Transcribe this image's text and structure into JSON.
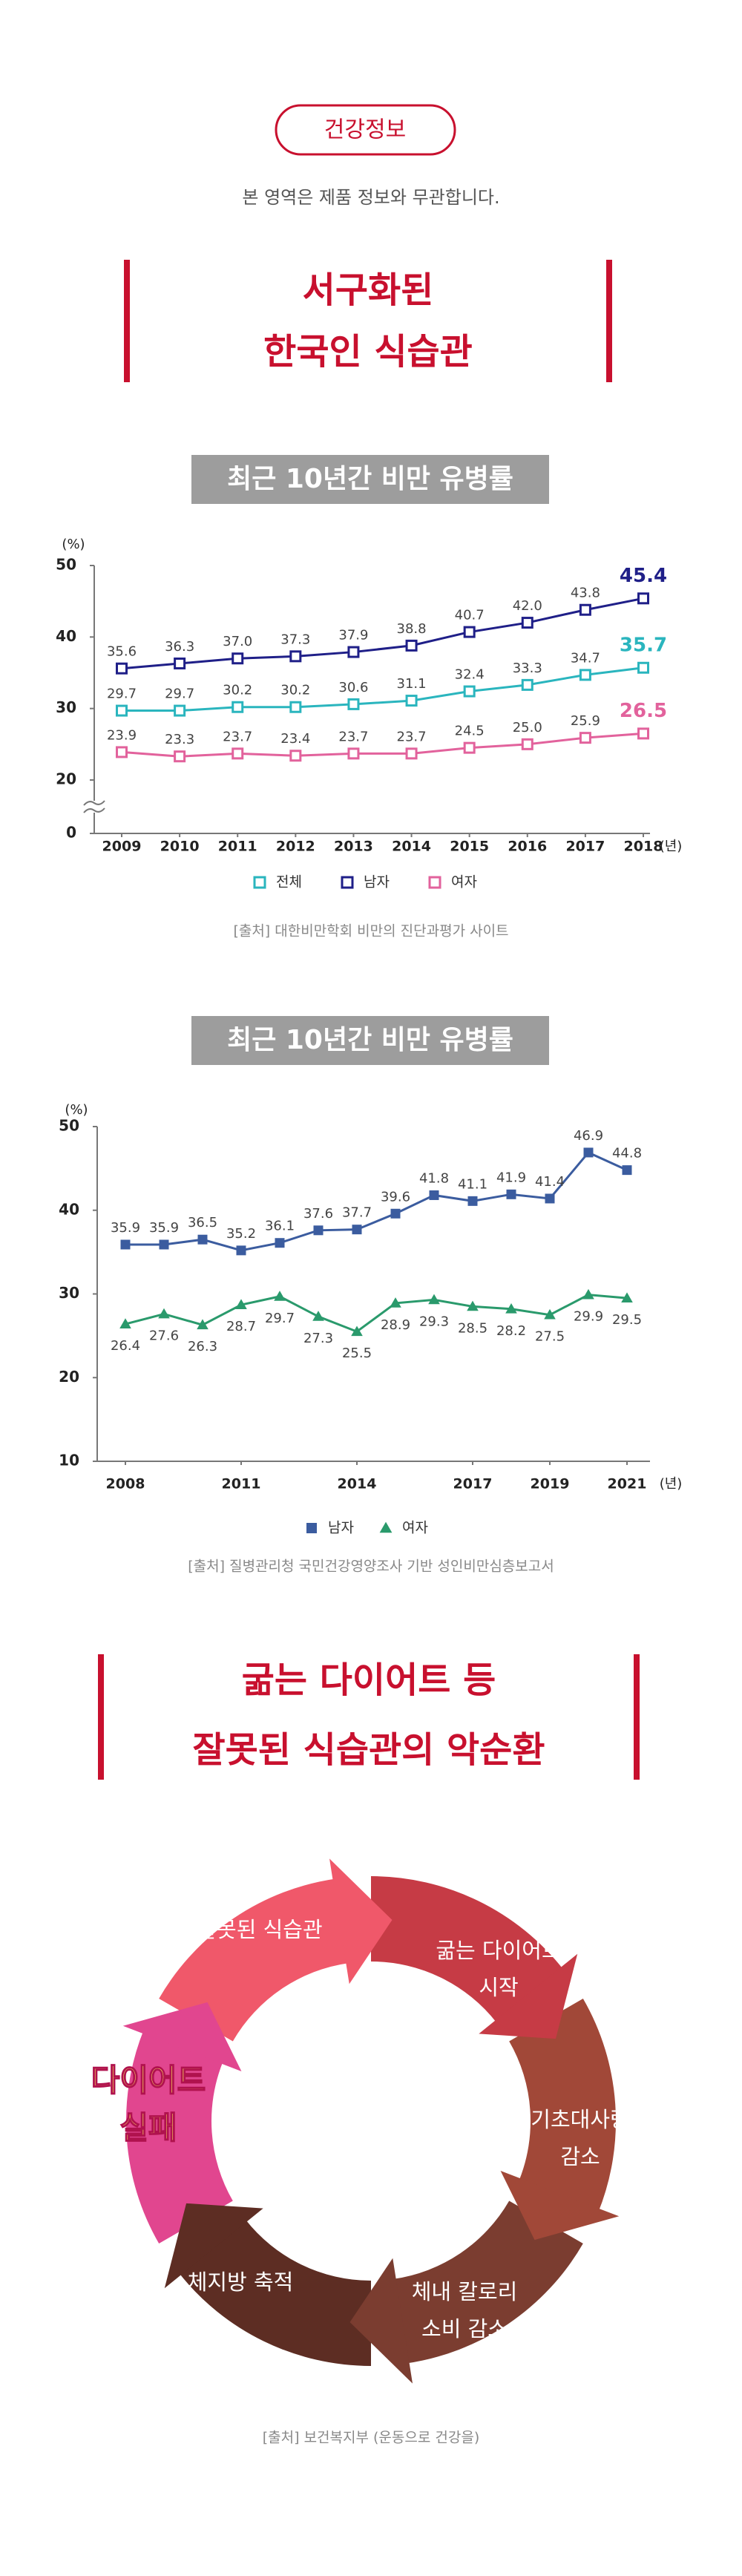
{
  "header": {
    "badge": "건강정보",
    "notice": "본 영역은 제품 정보와 무관합니다.",
    "title": [
      "서구화된",
      "한국인 식습관"
    ]
  },
  "chart_data": [
    {
      "type": "line",
      "title": "최근 10년간 비만 유병률",
      "y_label": "(%)",
      "x_label": "(년)",
      "x": [
        2009,
        2010,
        2011,
        2012,
        2013,
        2014,
        2015,
        2016,
        2017,
        2018
      ],
      "xlim": [
        2009,
        2018
      ],
      "xticks": [
        2009,
        2010,
        2011,
        2012,
        2013,
        2014,
        2015,
        2016,
        2017,
        2018
      ],
      "ylim": [
        0,
        50
      ],
      "yticks": [
        0,
        20,
        30,
        40,
        50
      ],
      "axis_break": true,
      "emphasize_last": true,
      "series": [
        {
          "name": "전체",
          "color": "#2ab5be",
          "marker": "square-open",
          "label_position": "above",
          "values": [
            29.7,
            29.7,
            30.2,
            30.2,
            30.6,
            31.1,
            32.4,
            33.3,
            34.7,
            35.7
          ]
        },
        {
          "name": "남자",
          "color": "#1f1f88",
          "marker": "square-open",
          "label_position": "above",
          "values": [
            35.6,
            36.3,
            37,
            37.3,
            37.9,
            38.8,
            40.7,
            42,
            43.8,
            45.4
          ],
          "value_labels": [
            "35.6",
            "36.3",
            "37.0",
            "37.3",
            "37.9",
            "38.8",
            "40.7",
            "42.0",
            "43.8",
            "45.4"
          ]
        },
        {
          "name": "여자",
          "color": "#e2629c",
          "marker": "square-open",
          "label_position": "above",
          "values": [
            23.9,
            23.3,
            23.7,
            23.4,
            23.7,
            23.7,
            24.5,
            25,
            25.9,
            26.5
          ],
          "value_labels": [
            "23.9",
            "23.3",
            "23.7",
            "23.4",
            "23.7",
            "23.7",
            "24.5",
            "25.0",
            "25.9",
            "26.5"
          ]
        }
      ],
      "source": "[출처] 대한비만학회 비만의 진단과평가 사이트"
    },
    {
      "type": "line",
      "title": "최근 10년간 비만 유병률",
      "y_label": "(%)",
      "x_label": "(년)",
      "x": [
        2008,
        2009,
        2010,
        2011,
        2012,
        2013,
        2014,
        2015,
        2016,
        2017,
        2018,
        2019,
        2020,
        2021
      ],
      "xlim": [
        2008,
        2021
      ],
      "xticks": [
        2008,
        2011,
        2014,
        2017,
        2019,
        2021
      ],
      "ylim": [
        10,
        50
      ],
      "yticks": [
        10,
        20,
        30,
        40,
        50
      ],
      "series": [
        {
          "name": "남자",
          "color": "#3b5c9f",
          "marker": "square",
          "label_position": "above",
          "values": [
            35.9,
            35.9,
            36.5,
            35.2,
            36.1,
            37.6,
            37.7,
            39.6,
            41.8,
            41.1,
            41.9,
            41.4,
            46.9,
            44.8
          ]
        },
        {
          "name": "여자",
          "color": "#2a9a6c",
          "marker": "triangle",
          "label_position": "below",
          "values": [
            26.4,
            27.6,
            26.3,
            28.7,
            29.7,
            27.3,
            25.5,
            28.9,
            29.3,
            28.5,
            28.2,
            27.5,
            29.9,
            29.5
          ]
        }
      ],
      "source": "[출처] 질병관리청 국민건강영양조사 기반 성인비만심층보고서"
    }
  ],
  "cycle": {
    "title": [
      "굶는 다이어트 등",
      "잘못된 식습관의 악순환"
    ],
    "steps": [
      {
        "label": [
          "잘못된 식습관"
        ]
      },
      {
        "label": [
          "굶는 다이어트",
          "시작"
        ]
      },
      {
        "label": [
          "기초대사량",
          "감소"
        ]
      },
      {
        "label": [
          "체내 칼로리",
          "소비 감소"
        ]
      },
      {
        "label": [
          "체지방 축적"
        ]
      },
      {
        "label": [
          "다이어트",
          "실패"
        ]
      }
    ],
    "source": "[출처] 보건복지부 (운동으로 건강을)"
  }
}
